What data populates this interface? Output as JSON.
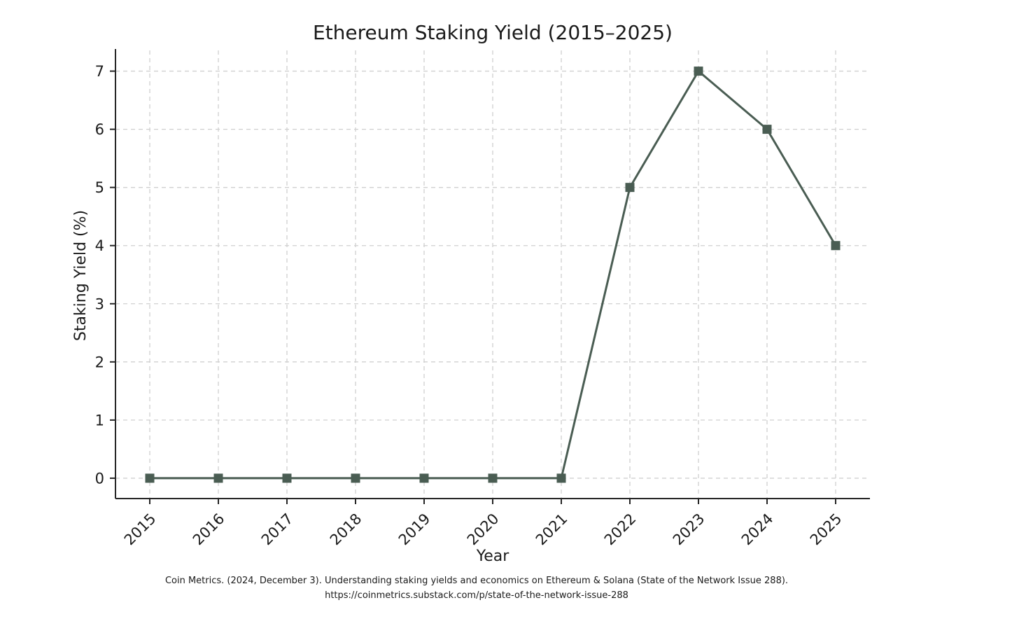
{
  "chart_data": {
    "type": "line",
    "title": "Ethereum Staking Yield (2015–2025)",
    "xlabel": "Year",
    "ylabel": "Staking Yield (%)",
    "x": [
      2015,
      2016,
      2017,
      2018,
      2019,
      2020,
      2021,
      2022,
      2023,
      2024,
      2025
    ],
    "values": [
      0,
      0,
      0,
      0,
      0,
      0,
      0,
      5,
      7,
      6,
      4
    ],
    "xticks": [
      2015,
      2016,
      2017,
      2018,
      2019,
      2020,
      2021,
      2022,
      2023,
      2024,
      2025
    ],
    "yticks": [
      0,
      1,
      2,
      3,
      4,
      5,
      6,
      7
    ],
    "xlim": [
      2014.5,
      2025.5
    ],
    "ylim": [
      -0.35,
      7.32
    ],
    "grid": true,
    "grid_style": "dashed",
    "legend": "none",
    "marker": "square",
    "line_color": "#4a5d53",
    "grid_color": "#d0d0d0",
    "axis_color": "#262626",
    "text_color": "#1a1a1a",
    "x_tick_rotation_deg": 45
  },
  "citation": {
    "line1": "Coin Metrics. (2024, December 3). Understanding staking yields and economics on Ethereum & Solana (State of the Network Issue 288).",
    "line2": "https://coinmetrics.substack.com/p/state-of-the-network-issue-288"
  }
}
